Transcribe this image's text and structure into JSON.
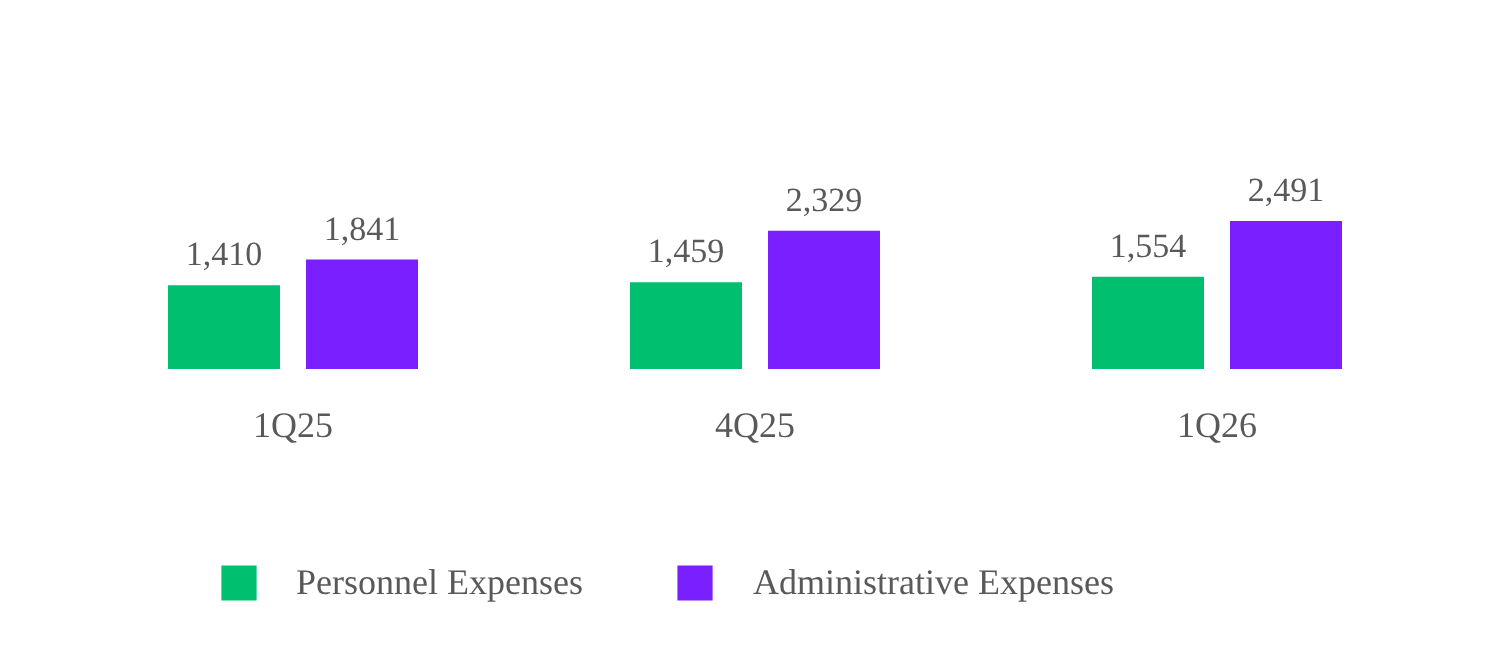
{
  "chart_data": {
    "type": "bar",
    "categories": [
      "1Q25",
      "4Q25",
      "1Q26"
    ],
    "series": [
      {
        "name": "Personnel Expenses",
        "color": "#00bf6f",
        "values": [
          1410,
          1459,
          1554
        ],
        "value_labels": [
          "1,410",
          "1,459",
          "1,554"
        ]
      },
      {
        "name": "Administrative Expenses",
        "color": "#7a1fff",
        "values": [
          1841,
          2329,
          2491
        ],
        "value_labels": [
          "1,841",
          "2,329",
          "2,491"
        ]
      }
    ],
    "legend": "bottom",
    "grid": false
  }
}
